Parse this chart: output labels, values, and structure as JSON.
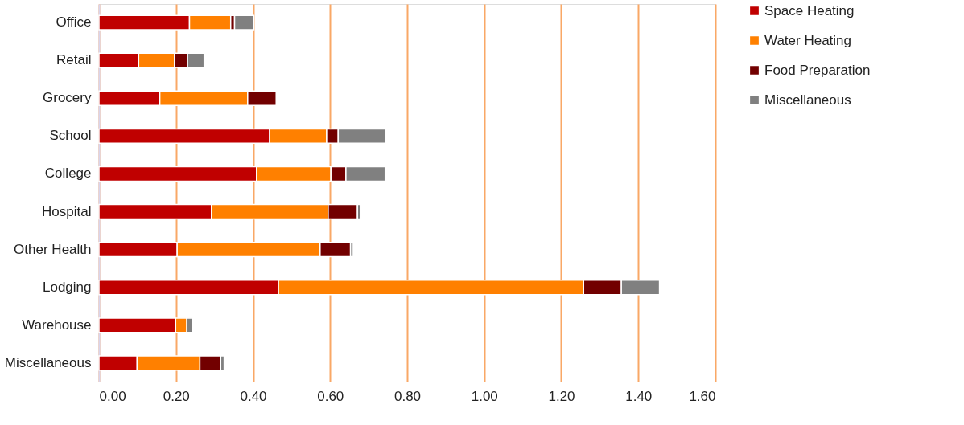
{
  "chart_data": {
    "type": "bar",
    "orientation": "horizontal",
    "stacked": true,
    "categories": [
      "Office",
      "Retail",
      "Grocery",
      "School",
      "College",
      "Hospital",
      "Other Health",
      "Lodging",
      "Warehouse",
      "Miscellaneous"
    ],
    "series": [
      {
        "name": "Space Heating",
        "color": "#c00000",
        "values": [
          0.235,
          0.103,
          0.158,
          0.443,
          0.409,
          0.292,
          0.203,
          0.466,
          0.199,
          0.099
        ]
      },
      {
        "name": "Water Heating",
        "color": "#ff8000",
        "values": [
          0.107,
          0.093,
          0.228,
          0.148,
          0.193,
          0.303,
          0.371,
          0.792,
          0.029,
          0.163
        ]
      },
      {
        "name": "Food Preparation",
        "color": "#720000",
        "values": [
          0.01,
          0.034,
          0.074,
          0.03,
          0.039,
          0.076,
          0.079,
          0.098,
          null,
          0.054
        ]
      },
      {
        "name": "Miscellaneous",
        "color": "#808080",
        "values": [
          0.05,
          0.043,
          null,
          0.123,
          0.102,
          0.008,
          0.007,
          0.099,
          0.015,
          0.009
        ]
      }
    ],
    "xlim": [
      0,
      1.6
    ],
    "xticks": [
      {
        "value": 0,
        "label": "0.00"
      },
      {
        "value": 0.2,
        "label": "0.20"
      },
      {
        "value": 0.4,
        "label": "0.40"
      },
      {
        "value": 0.6,
        "label": "0.60"
      },
      {
        "value": 0.8,
        "label": "0.80"
      },
      {
        "value": 1.0,
        "label": "1.00"
      },
      {
        "value": 1.2,
        "label": "1.20"
      },
      {
        "value": 1.4,
        "label": "1.40"
      },
      {
        "value": 1.6,
        "label": "1.60"
      }
    ],
    "grid": "x",
    "legend": "right"
  }
}
